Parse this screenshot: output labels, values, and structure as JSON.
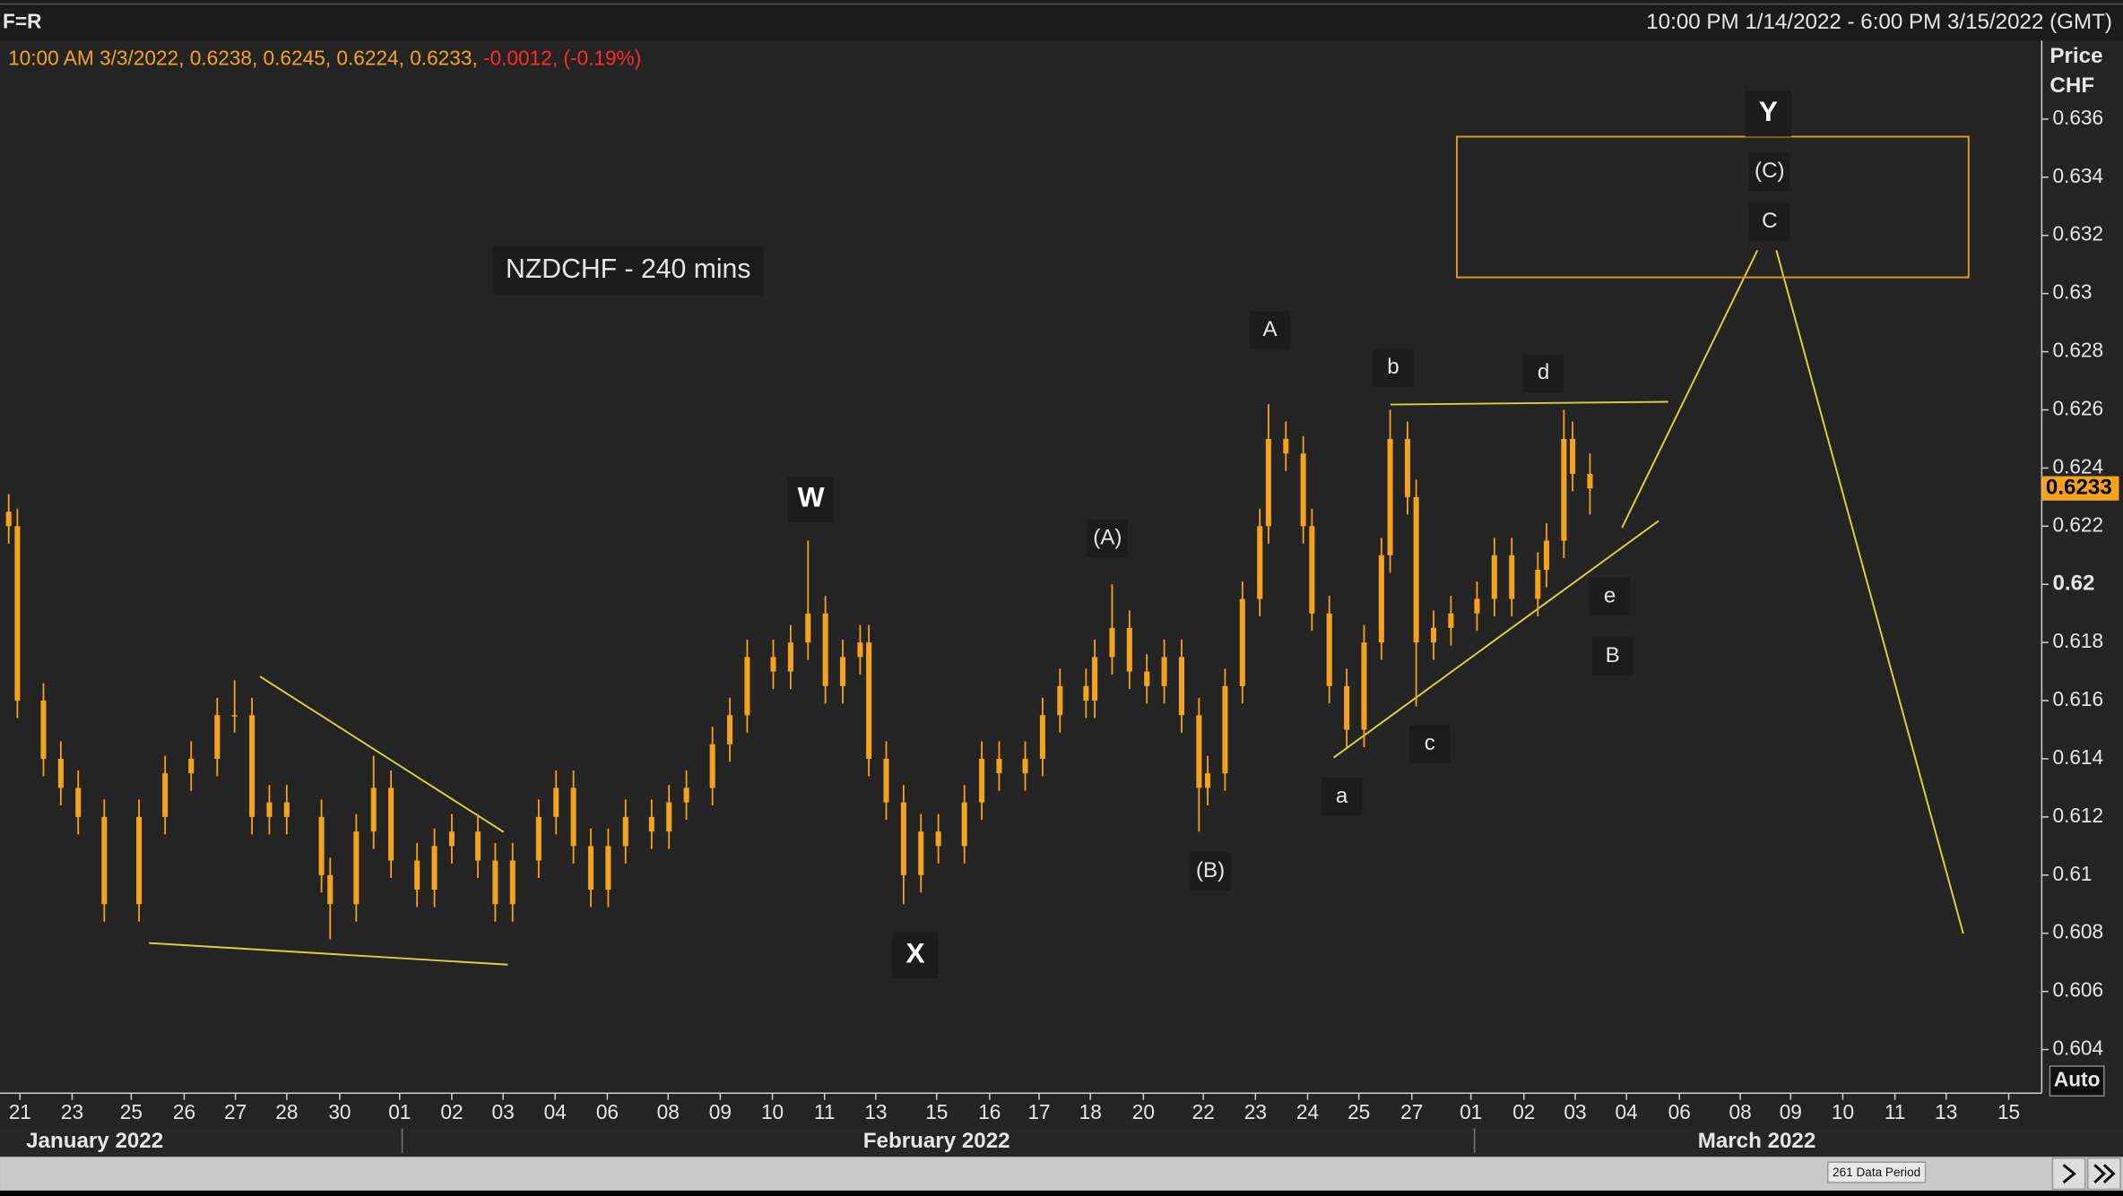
{
  "header": {
    "symbol": "F=R",
    "range": "10:00 PM 1/14/2022 - 6:00 PM 3/15/2022 (GMT)",
    "ohlc_text": "10:00 AM 3/3/2022, 0.6238, 0.6245, 0.6224, 0.6233,",
    "change_text": "-0.0012, (-0.19%)"
  },
  "axis_header": {
    "line1": "Price",
    "line2": "CHF",
    "auto": "Auto"
  },
  "footer": {
    "data_period": "261 Data Period"
  },
  "chart_data": {
    "type": "candlestick",
    "title": "NZDCHF - 240 mins",
    "color": "#f5a21e",
    "wave_labels": [
      "W",
      "X",
      "Y",
      "(A)",
      "(B)",
      "(C)",
      "A",
      "B",
      "C",
      "a",
      "b",
      "c",
      "d",
      "e"
    ],
    "x": [
      1,
      2,
      5,
      7,
      9,
      12,
      16,
      19,
      22,
      25,
      27,
      29,
      31,
      33,
      37,
      38,
      41,
      43,
      45,
      48,
      50,
      52,
      55,
      57,
      59,
      62,
      64,
      66,
      68,
      70,
      72,
      75,
      77,
      79,
      82,
      84,
      86,
      89,
      91,
      93,
      95,
      97,
      99,
      100,
      102,
      104,
      106,
      108,
      111,
      113,
      115,
      118,
      120,
      122,
      125,
      126,
      128,
      130,
      132,
      134,
      136,
      138,
      139,
      141,
      143,
      145,
      146,
      148,
      150,
      151,
      153,
      155,
      157,
      159,
      160,
      162,
      163,
      165,
      167,
      170,
      172,
      174,
      177,
      178,
      180,
      181,
      183
    ],
    "open": [
      0.6225,
      0.622,
      0.616,
      0.614,
      0.613,
      0.612,
      0.609,
      0.612,
      0.6135,
      0.614,
      0.6155,
      0.6155,
      0.612,
      0.6125,
      0.612,
      0.61,
      0.609,
      0.6115,
      0.613,
      0.6105,
      0.6095,
      0.611,
      0.6115,
      0.6105,
      0.609,
      0.6105,
      0.612,
      0.613,
      0.611,
      0.6095,
      0.611,
      0.612,
      0.6115,
      0.6125,
      0.613,
      0.6145,
      0.6155,
      0.6175,
      0.617,
      0.618,
      0.619,
      0.6165,
      0.6175,
      0.618,
      0.614,
      0.6125,
      0.61,
      0.6115,
      0.611,
      0.6125,
      0.614,
      0.6135,
      0.614,
      0.6155,
      0.6165,
      0.616,
      0.6175,
      0.6185,
      0.617,
      0.6165,
      0.6175,
      0.6155,
      0.613,
      0.6135,
      0.6165,
      0.6195,
      0.622,
      0.625,
      0.6245,
      0.622,
      0.619,
      0.6165,
      0.615,
      0.618,
      0.621,
      0.625,
      0.623,
      0.618,
      0.6185,
      0.619,
      0.6195,
      0.621,
      0.6195,
      0.6205,
      0.6215,
      0.625,
      0.6238
    ],
    "high": [
      0.6231,
      0.6226,
      0.6166,
      0.6146,
      0.6136,
      0.6126,
      0.6126,
      0.6141,
      0.6146,
      0.6161,
      0.6167,
      0.6161,
      0.6131,
      0.6131,
      0.6126,
      0.6106,
      0.6121,
      0.6141,
      0.6136,
      0.6111,
      0.6116,
      0.6121,
      0.6121,
      0.6111,
      0.6111,
      0.6126,
      0.6136,
      0.6136,
      0.6116,
      0.6116,
      0.6126,
      0.6126,
      0.6131,
      0.6136,
      0.6151,
      0.6161,
      0.6181,
      0.6181,
      0.6186,
      0.6215,
      0.6196,
      0.6181,
      0.6186,
      0.6186,
      0.6146,
      0.6131,
      0.6121,
      0.6121,
      0.6131,
      0.6146,
      0.6146,
      0.6146,
      0.6161,
      0.6171,
      0.6171,
      0.6181,
      0.62,
      0.6191,
      0.6176,
      0.6181,
      0.6181,
      0.6161,
      0.6141,
      0.6171,
      0.6201,
      0.6226,
      0.6262,
      0.6256,
      0.6251,
      0.6226,
      0.6196,
      0.6171,
      0.6186,
      0.6216,
      0.626,
      0.6256,
      0.6236,
      0.6191,
      0.6196,
      0.6201,
      0.6216,
      0.6216,
      0.6211,
      0.6221,
      0.626,
      0.6256,
      0.6245
    ],
    "low": [
      0.6214,
      0.6154,
      0.6134,
      0.6124,
      0.6114,
      0.6084,
      0.6084,
      0.6114,
      0.6129,
      0.6134,
      0.6149,
      0.6114,
      0.6114,
      0.6114,
      0.6094,
      0.6078,
      0.6084,
      0.6109,
      0.6099,
      0.6089,
      0.6089,
      0.6104,
      0.6099,
      0.6084,
      0.6084,
      0.6099,
      0.6114,
      0.6104,
      0.6089,
      0.6089,
      0.6104,
      0.6109,
      0.6109,
      0.6119,
      0.6124,
      0.6139,
      0.6149,
      0.6164,
      0.6164,
      0.6174,
      0.6159,
      0.6159,
      0.6169,
      0.6134,
      0.6119,
      0.609,
      0.6094,
      0.6104,
      0.6104,
      0.6119,
      0.6129,
      0.6129,
      0.6134,
      0.6149,
      0.6154,
      0.6154,
      0.6169,
      0.6164,
      0.6159,
      0.6159,
      0.6149,
      0.6115,
      0.6124,
      0.6129,
      0.6159,
      0.6189,
      0.6214,
      0.6239,
      0.6214,
      0.6184,
      0.6159,
      0.6144,
      0.6144,
      0.6174,
      0.6204,
      0.6224,
      0.6158,
      0.6174,
      0.6179,
      0.6184,
      0.6189,
      0.6189,
      0.6189,
      0.6199,
      0.6209,
      0.6232,
      0.6224
    ],
    "close": [
      0.622,
      0.616,
      0.614,
      0.613,
      0.612,
      0.609,
      0.612,
      0.6135,
      0.614,
      0.6155,
      0.6155,
      0.612,
      0.6125,
      0.612,
      0.61,
      0.609,
      0.6115,
      0.613,
      0.6105,
      0.6095,
      0.611,
      0.6115,
      0.6105,
      0.609,
      0.6105,
      0.612,
      0.613,
      0.611,
      0.6095,
      0.611,
      0.612,
      0.6115,
      0.6125,
      0.613,
      0.6145,
      0.6155,
      0.6175,
      0.617,
      0.618,
      0.619,
      0.6165,
      0.6175,
      0.618,
      0.614,
      0.6125,
      0.61,
      0.6115,
      0.611,
      0.6125,
      0.614,
      0.6135,
      0.614,
      0.6155,
      0.6165,
      0.616,
      0.6175,
      0.6185,
      0.617,
      0.6165,
      0.6175,
      0.6155,
      0.613,
      0.6135,
      0.6165,
      0.6195,
      0.622,
      0.625,
      0.6245,
      0.622,
      0.619,
      0.6165,
      0.615,
      0.618,
      0.621,
      0.625,
      0.623,
      0.618,
      0.6185,
      0.619,
      0.6195,
      0.621,
      0.6195,
      0.6205,
      0.6215,
      0.625,
      0.6238,
      0.6233
    ],
    "xlim": [
      0,
      235
    ],
    "xticks": [
      {
        "value": 2.3,
        "label": "21"
      },
      {
        "value": 8.3,
        "label": "23"
      },
      {
        "value": 15.1,
        "label": "25"
      },
      {
        "value": 21.2,
        "label": "26"
      },
      {
        "value": 27.1,
        "label": "27"
      },
      {
        "value": 33.0,
        "label": "28"
      },
      {
        "value": 39.1,
        "label": "30"
      },
      {
        "value": 46.0,
        "label": "01"
      },
      {
        "value": 52.0,
        "label": "02"
      },
      {
        "value": 57.9,
        "label": "03"
      },
      {
        "value": 63.9,
        "label": "04"
      },
      {
        "value": 69.9,
        "label": "06"
      },
      {
        "value": 76.9,
        "label": "08"
      },
      {
        "value": 82.9,
        "label": "09"
      },
      {
        "value": 88.9,
        "label": "10"
      },
      {
        "value": 94.9,
        "label": "11"
      },
      {
        "value": 100.8,
        "label": "13"
      },
      {
        "value": 107.8,
        "label": "15"
      },
      {
        "value": 113.9,
        "label": "16"
      },
      {
        "value": 119.6,
        "label": "17"
      },
      {
        "value": 125.5,
        "label": "18"
      },
      {
        "value": 131.6,
        "label": "20"
      },
      {
        "value": 138.5,
        "label": "22"
      },
      {
        "value": 144.5,
        "label": "23"
      },
      {
        "value": 150.5,
        "label": "24"
      },
      {
        "value": 156.4,
        "label": "25"
      },
      {
        "value": 162.5,
        "label": "27"
      },
      {
        "value": 169.3,
        "label": "01"
      },
      {
        "value": 175.4,
        "label": "02"
      },
      {
        "value": 181.3,
        "label": "03"
      },
      {
        "value": 187.2,
        "label": "04"
      },
      {
        "value": 193.3,
        "label": "06"
      },
      {
        "value": 200.3,
        "label": "08"
      },
      {
        "value": 206.1,
        "label": "09"
      },
      {
        "value": 212.1,
        "label": "10"
      },
      {
        "value": 218.1,
        "label": "11"
      },
      {
        "value": 224.0,
        "label": "13"
      },
      {
        "value": 231.2,
        "label": "15"
      }
    ],
    "month_labels": [
      {
        "value": 10.9,
        "label": "January 2022"
      },
      {
        "value": 107.8,
        "label": "February 2022"
      },
      {
        "value": 202.2,
        "label": "March 2022"
      }
    ],
    "ylim": [
      0.6025,
      0.6387
    ],
    "yticks": [
      0.604,
      0.606,
      0.608,
      0.61,
      0.612,
      0.614,
      0.616,
      0.618,
      0.62,
      0.622,
      0.624,
      0.626,
      0.628,
      0.63,
      0.632,
      0.634,
      0.636
    ]
  }
}
